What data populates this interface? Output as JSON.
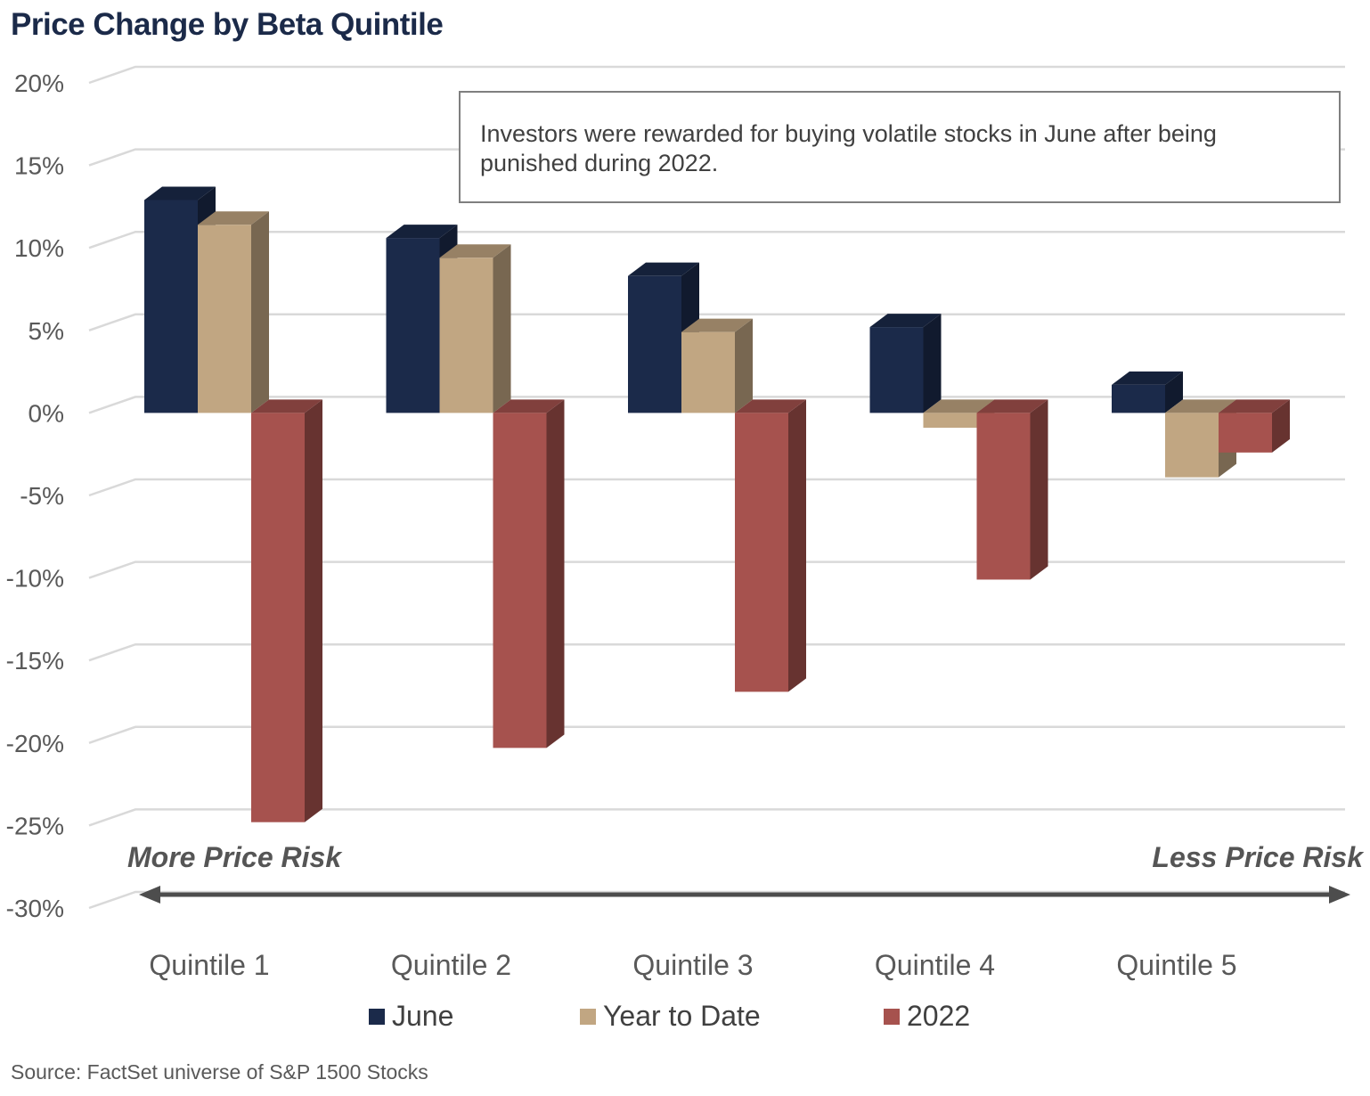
{
  "title": "Price Change by Beta Quintile",
  "annotation": "Investors were rewarded for buying volatile stocks in June after being punished during 2022.",
  "risk_labels": {
    "left": "More Price Risk",
    "right": "Less Price Risk"
  },
  "source": "Source: FactSet universe of S&P 1500 Stocks",
  "chart_data": {
    "type": "bar",
    "categories": [
      "Quintile 1",
      "Quintile 2",
      "Quintile 3",
      "Quintile 4",
      "Quintile 5"
    ],
    "series": [
      {
        "name": "June",
        "values": [
          12.9,
          10.6,
          8.3,
          5.2,
          1.7
        ],
        "color": "#1b2a4a"
      },
      {
        "name": "Year to Date",
        "values": [
          11.4,
          9.4,
          4.9,
          -0.9,
          -3.9
        ],
        "color": "#c1a682"
      },
      {
        "name": "2022",
        "values": [
          -24.8,
          -20.3,
          -16.9,
          -10.1,
          -2.4
        ],
        "color": "#a6524e"
      }
    ],
    "ylim": [
      -30,
      20
    ],
    "yticks": [
      -30,
      -25,
      -20,
      -15,
      -10,
      -5,
      0,
      5,
      10,
      15,
      20
    ],
    "ytick_labels": [
      "-30%",
      "-25%",
      "-20%",
      "-15%",
      "-10%",
      "-5%",
      "0%",
      "5%",
      "10%",
      "15%",
      "20%"
    ],
    "grid": true,
    "legend_position": "bottom",
    "style": "3d-column"
  }
}
